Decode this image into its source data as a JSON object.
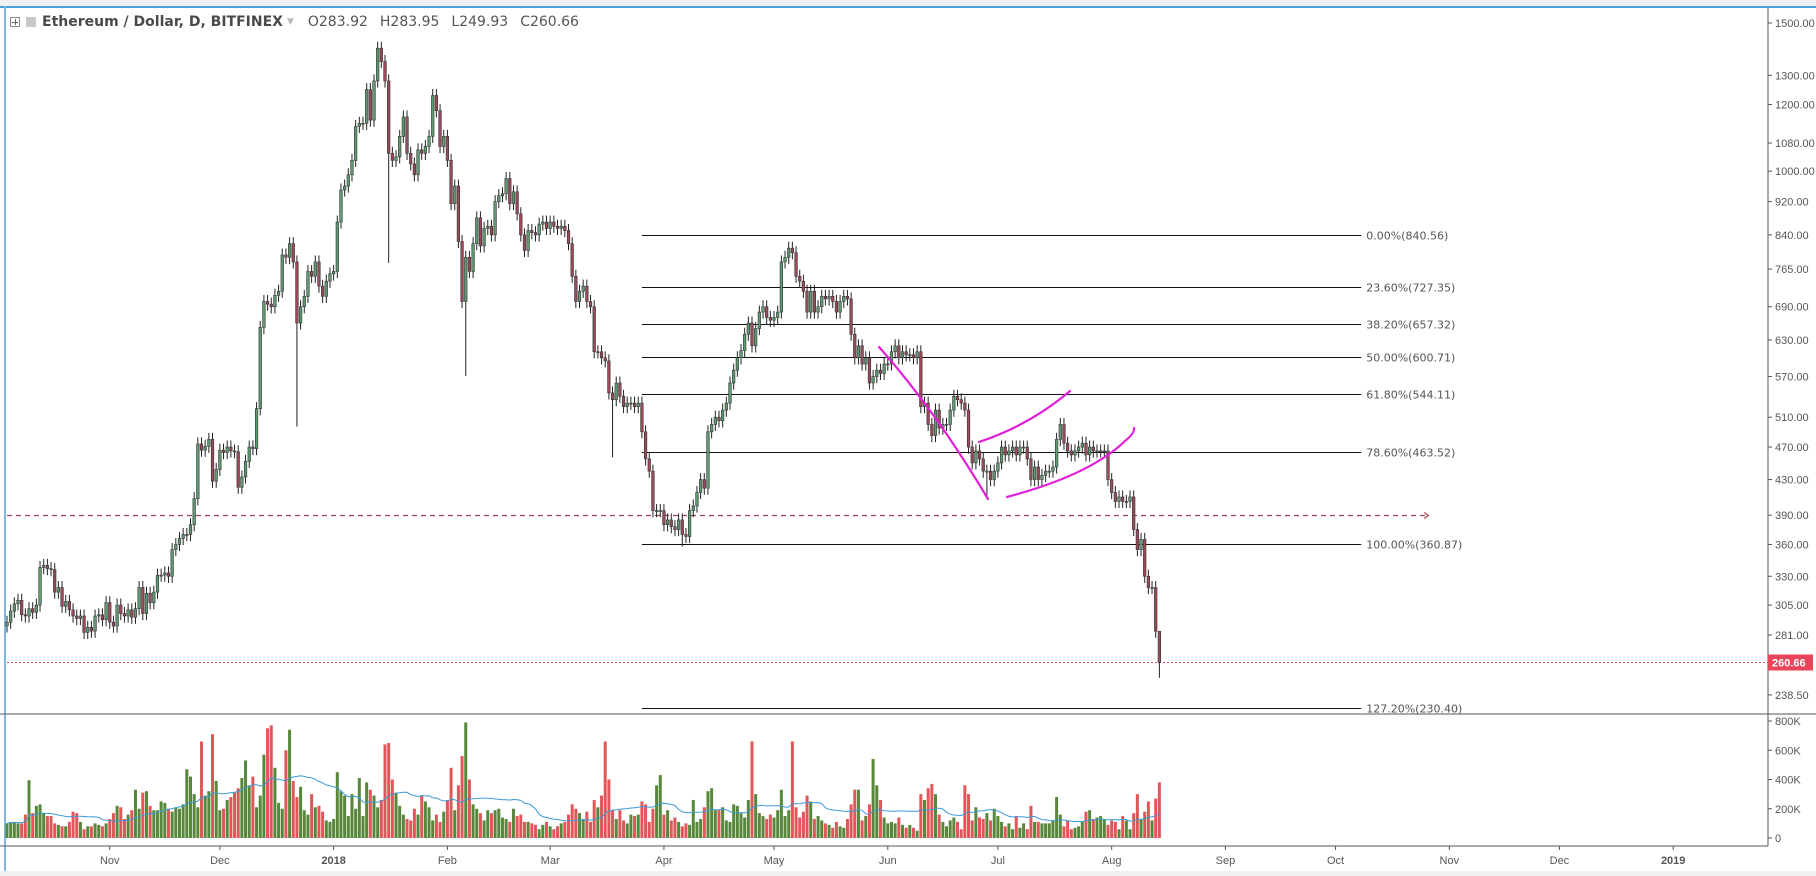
{
  "header": {
    "symbol": "Ethereum / Dollar, D, BITFINEX",
    "open": "O283.92",
    "high": "H283.95",
    "low": "L249.93",
    "close": "C260.66",
    "icons": [
      "plus-square-icon",
      "symbol-color-icon",
      "caret-down-icon"
    ]
  },
  "colors": {
    "up": "#5f9a70",
    "down": "#9b4a5a",
    "vol_up": "#57873a",
    "vol_down": "#e15759",
    "vol_ma": "#3a9ad9",
    "last_price": "#e8445a",
    "drawing": "#e020d8",
    "hline": "#a04050",
    "accent": "#4aa3d8"
  },
  "chart_data": {
    "type": "candlestick",
    "scale": "log",
    "start_date": "2017-10-04",
    "last_bar": {
      "open": 283.92,
      "high": 283.95,
      "low": 249.93,
      "close": 260.66
    },
    "close": [
      291,
      300,
      306,
      309,
      297,
      296,
      302,
      299,
      305,
      338,
      340,
      337,
      336,
      316,
      320,
      304,
      308,
      301,
      296,
      294,
      296,
      283,
      287,
      284,
      296,
      297,
      293,
      307,
      291,
      288,
      305,
      298,
      296,
      301,
      295,
      302,
      320,
      298,
      315,
      307,
      316,
      331,
      331,
      333,
      330,
      355,
      360,
      366,
      370,
      370,
      380,
      408,
      474,
      466,
      471,
      480,
      428,
      442,
      466,
      463,
      470,
      465,
      464,
      421,
      433,
      452,
      470,
      468,
      522,
      652,
      700,
      695,
      690,
      712,
      720,
      795,
      790,
      820,
      780,
      660,
      690,
      710,
      760,
      750,
      780,
      730,
      710,
      740,
      755,
      760,
      870,
      950,
      960,
      990,
      1030,
      1130,
      1140,
      1140,
      1250,
      1150,
      1280,
      1400,
      1350,
      1280,
      1050,
      1030,
      1040,
      1100,
      1160,
      1050,
      1020,
      990,
      1060,
      1050,
      1070,
      1100,
      1230,
      1180,
      1070,
      1100,
      1030,
      915,
      960,
      825,
      700,
      790,
      760,
      820,
      880,
      815,
      855,
      860,
      840,
      920,
      935,
      940,
      980,
      915,
      945,
      890,
      840,
      805,
      850,
      845,
      840,
      865,
      870,
      855,
      870,
      860,
      855,
      860,
      850,
      820,
      750,
      700,
      720,
      730,
      700,
      690,
      610,
      610,
      600,
      595,
      545,
      535,
      560,
      540,
      525,
      530,
      530,
      525,
      530,
      490,
      455,
      440,
      395,
      395,
      395,
      380,
      385,
      378,
      375,
      385,
      370,
      368,
      395,
      400,
      415,
      430,
      420,
      490,
      500,
      510,
      505,
      520,
      530,
      560,
      580,
      600,
      612,
      640,
      660,
      620,
      650,
      680,
      690,
      670,
      665,
      670,
      680,
      780,
      790,
      810,
      800,
      750,
      740,
      720,
      680,
      720,
      680,
      690,
      710,
      705,
      710,
      700,
      680,
      700,
      710,
      705,
      640,
      600,
      620,
      590,
      600,
      560,
      570,
      580,
      575,
      590,
      590,
      610,
      620,
      600,
      610,
      605,
      605,
      600,
      610,
      525,
      530,
      500,
      485,
      520,
      495,
      500,
      500,
      520,
      540,
      535,
      530,
      520,
      470,
      450,
      465,
      455,
      440,
      440,
      430,
      440,
      450,
      470,
      460,
      465,
      470,
      460,
      470,
      470,
      455,
      430,
      445,
      430,
      435,
      440,
      440,
      445,
      480,
      500,
      475,
      465,
      460,
      465,
      470,
      475,
      460,
      470,
      465,
      465,
      465,
      465,
      430,
      415,
      405,
      410,
      405,
      405,
      410,
      375,
      355,
      365,
      330,
      320,
      320,
      283.92,
      260.66
    ],
    "notable_lows": [
      {
        "date": "2017-12-22",
        "low": 497
      },
      {
        "date": "2018-01-16",
        "low": 778
      },
      {
        "date": "2018-02-06",
        "low": 571
      },
      {
        "date": "2018-03-18",
        "low": 457
      },
      {
        "date": "2018-04-06",
        "low": 358
      },
      {
        "date": "2018-06-28",
        "low": 410
      }
    ],
    "volume_k": [
      100,
      110,
      110,
      100,
      100,
      160,
      395,
      170,
      220,
      230,
      170,
      150,
      150,
      100,
      90,
      80,
      80,
      110,
      180,
      170,
      110,
      60,
      80,
      80,
      100,
      90,
      80,
      100,
      130,
      170,
      220,
      210,
      130,
      160,
      190,
      330,
      200,
      310,
      320,
      220,
      190,
      190,
      250,
      240,
      200,
      180,
      210,
      200,
      230,
      470,
      420,
      300,
      210,
      660,
      290,
      320,
      710,
      390,
      190,
      200,
      260,
      280,
      310,
      340,
      410,
      530,
      360,
      420,
      210,
      290,
      570,
      750,
      770,
      480,
      240,
      200,
      600,
      740,
      390,
      280,
      350,
      190,
      160,
      300,
      210,
      220,
      180,
      120,
      110,
      130,
      450,
      320,
      290,
      150,
      300,
      200,
      410,
      150,
      380,
      330,
      290,
      210,
      260,
      640,
      650,
      400,
      310,
      220,
      160,
      130,
      120,
      200,
      160,
      290,
      250,
      210,
      120,
      160,
      110,
      180,
      260,
      480,
      190,
      360,
      560,
      790,
      400,
      230,
      200,
      170,
      120,
      190,
      170,
      190,
      200,
      140,
      130,
      110,
      200,
      150,
      160,
      110,
      110,
      100,
      90,
      60,
      90,
      110,
      80,
      60,
      80,
      100,
      110,
      160,
      230,
      200,
      170,
      130,
      180,
      110,
      260,
      210,
      290,
      660,
      400,
      190,
      130,
      190,
      120,
      100,
      160,
      150,
      160,
      250,
      230,
      110,
      200,
      360,
      430,
      160,
      190,
      120,
      140,
      110,
      80,
      100,
      90,
      260,
      110,
      130,
      210,
      320,
      340,
      190,
      190,
      210,
      120,
      110,
      230,
      220,
      170,
      140,
      260,
      660,
      300,
      170,
      150,
      130,
      160,
      140,
      190,
      330,
      150,
      190,
      660,
      210,
      140,
      180,
      290,
      250,
      130,
      150,
      120,
      100,
      90,
      70,
      110,
      80,
      70,
      130,
      230,
      330,
      330,
      120,
      150,
      230,
      540,
      360,
      260,
      140,
      100,
      110,
      100,
      140,
      90,
      70,
      90,
      70,
      50,
      300,
      260,
      340,
      370,
      300,
      160,
      110,
      80,
      120,
      140,
      110,
      60,
      360,
      300,
      120,
      210,
      140,
      130,
      170,
      120,
      200,
      150,
      110,
      80,
      100,
      60,
      150,
      70,
      100,
      60,
      220,
      110,
      110,
      100,
      100,
      100,
      120,
      280,
      160,
      80,
      120,
      60,
      70,
      80,
      110,
      180,
      190,
      130,
      140,
      150,
      130,
      90,
      120,
      110,
      60,
      150,
      120,
      60,
      170,
      300,
      130,
      180,
      250,
      120,
      270,
      380
    ],
    "price_axis": [
      "1500.00",
      "1300.00",
      "1200.00",
      "1080.00",
      "1000.00",
      "920.00",
      "840.00",
      "765.00",
      "690.00",
      "630.00",
      "570.00",
      "510.00",
      "470.00",
      "430.00",
      "390.00",
      "360.00",
      "330.00",
      "305.00",
      "281.00",
      "238.50"
    ],
    "last_price_label": "260.66",
    "volume_axis": [
      "800K",
      "600K",
      "400K",
      "200K",
      "0"
    ],
    "time_axis": [
      {
        "label": "Nov",
        "date": "2017-11-01"
      },
      {
        "label": "Dec",
        "date": "2017-12-01"
      },
      {
        "label": "2018",
        "date": "2018-01-01",
        "bold": true
      },
      {
        "label": "Feb",
        "date": "2018-02-01"
      },
      {
        "label": "Mar",
        "date": "2018-03-01"
      },
      {
        "label": "Apr",
        "date": "2018-04-01"
      },
      {
        "label": "May",
        "date": "2018-05-01"
      },
      {
        "label": "Jun",
        "date": "2018-06-01"
      },
      {
        "label": "Jul",
        "date": "2018-07-01"
      },
      {
        "label": "Aug",
        "date": "2018-08-01"
      },
      {
        "label": "Sep",
        "date": "2018-09-01"
      },
      {
        "label": "Oct",
        "date": "2018-10-01"
      },
      {
        "label": "Nov",
        "date": "2018-11-01"
      },
      {
        "label": "Dec",
        "date": "2018-12-01"
      },
      {
        "label": "2019",
        "date": "2019-01-01",
        "bold": true
      }
    ],
    "fib_levels": [
      {
        "label": "0.00%(840.56)",
        "price": 840.56
      },
      {
        "label": "23.60%(727.35)",
        "price": 727.35
      },
      {
        "label": "38.20%(657.32)",
        "price": 657.32
      },
      {
        "label": "50.00%(600.71)",
        "price": 600.71
      },
      {
        "label": "61.80%(544.11)",
        "price": 544.11
      },
      {
        "label": "78.60%(463.52)",
        "price": 463.52
      },
      {
        "label": "100.00%(360.87)",
        "price": 360.87
      },
      {
        "label": "127.20%(230.40)",
        "price": 230.4
      }
    ],
    "horizontal_ray_price": 390,
    "volume_ma": true
  }
}
